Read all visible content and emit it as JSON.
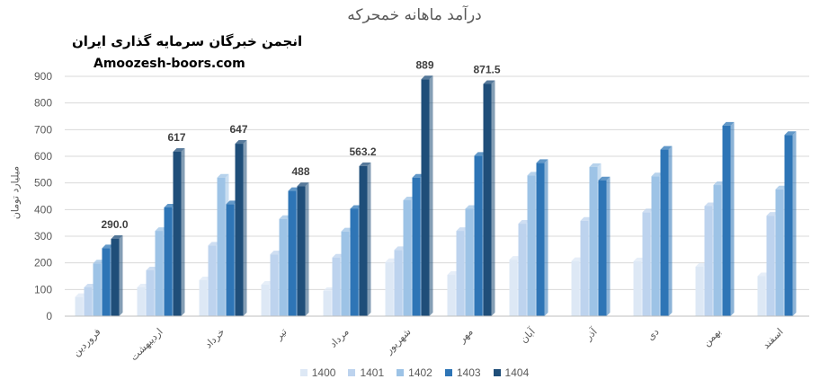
{
  "watermark": {
    "line1": "انجمن خبرگان سرمایه گذاری ایران",
    "line2": "Amoozesh-boors.com"
  },
  "chart_data": {
    "type": "bar",
    "title": "درآمد ماهانه خمحرکه",
    "ylabel": "میلیارد تومان",
    "xlabel": "",
    "ylim": [
      0,
      900
    ],
    "yticks": [
      0,
      100,
      200,
      300,
      400,
      500,
      600,
      700,
      800,
      900
    ],
    "grid": true,
    "legend_position": "bottom",
    "categories": [
      "فروردین",
      "اردیبهشت",
      "خرداد",
      "تیر",
      "مرداد",
      "شهریور",
      "مهر",
      "آبان",
      "آذر",
      "دی",
      "بهمن",
      "اسفند"
    ],
    "series": [
      {
        "name": "1400",
        "color": "#dde8f5",
        "values": [
          72,
          108,
          135,
          118,
          95,
          203,
          155,
          212,
          207,
          206,
          186,
          150
        ]
      },
      {
        "name": "1401",
        "color": "#bdd3ee",
        "values": [
          108,
          172,
          265,
          232,
          220,
          248,
          320,
          347,
          358,
          390,
          413,
          377
        ]
      },
      {
        "name": "1402",
        "color": "#9dc3e6",
        "values": [
          198,
          320,
          520,
          365,
          318,
          435,
          403,
          528,
          560,
          525,
          492,
          476
        ]
      },
      {
        "name": "1403",
        "color": "#2e75b6",
        "values": [
          255,
          408,
          420,
          470,
          403,
          520,
          602,
          575,
          510,
          625,
          715,
          680
        ]
      },
      {
        "name": "1404",
        "color": "#1f4e79",
        "values": [
          290.0,
          617,
          647,
          488,
          563.2,
          889,
          871.5,
          null,
          null,
          null,
          null,
          null
        ]
      }
    ],
    "data_labels": [
      "290.0",
      "617",
      "647",
      "488",
      "563.2",
      "889",
      "871.5"
    ]
  }
}
